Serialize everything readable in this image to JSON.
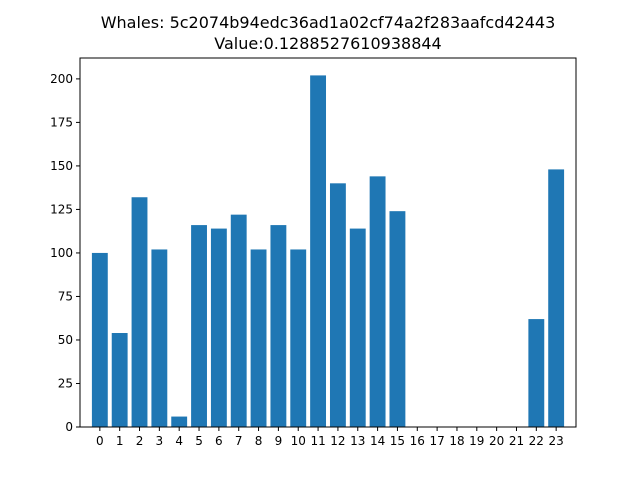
{
  "chart_data": {
    "type": "bar",
    "title": "Whales: 5c2074b94edc36ad1a02cf74a2f283aafcd42443",
    "subtitle": "Value:0.1288527610938844",
    "xlabel": "",
    "ylabel": "",
    "categories": [
      "0",
      "1",
      "2",
      "3",
      "4",
      "5",
      "6",
      "7",
      "8",
      "9",
      "10",
      "11",
      "12",
      "13",
      "14",
      "15",
      "16",
      "17",
      "18",
      "19",
      "20",
      "21",
      "22",
      "23"
    ],
    "values": [
      100,
      54,
      132,
      102,
      6,
      116,
      114,
      122,
      102,
      116,
      102,
      202,
      140,
      114,
      144,
      124,
      0,
      0,
      0,
      0,
      0,
      0,
      62,
      148
    ],
    "ylim": [
      0,
      212
    ],
    "yticks": [
      0,
      25,
      50,
      75,
      100,
      125,
      150,
      175,
      200
    ],
    "grid": false,
    "bar_color": "#1f77b4"
  }
}
